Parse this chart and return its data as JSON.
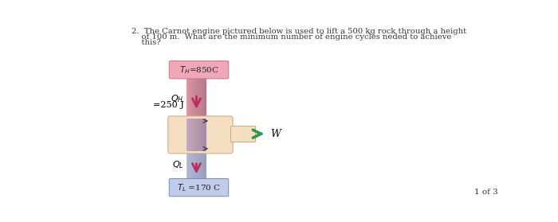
{
  "page_bg": "#ffffff",
  "question_line1": "2.  The Carnot engine pictured below is used to lift a 500 kg rock through a height",
  "question_line2": "    of 100 m.  What are the minimum number of engine cycles neded to achieve",
  "question_line3": "    this?",
  "page_label": "1 of 3",
  "TH_label": "$\\mathit{T}_{H}$=850C",
  "TL_label": "$\\mathit{T}_{L}$ =170 C",
  "QH_line1": "$Q_H$",
  "QH_line2": "=250 J",
  "QL_label": "$Q_L$",
  "W_label": "W",
  "hot_res_color": "#f0a8b8",
  "cold_res_color": "#c0cce8",
  "engine_color": "#f5dfc0",
  "hot_pipe_color": "#d08898",
  "cold_pipe_color": "#a8b0cc",
  "mixed_pipe_color": "#c0a8b8",
  "arrow_color": "#c02860",
  "work_arrow_color": "#289848",
  "small_arrow_color": "#404040",
  "hot_res_edge": "#c07888",
  "cold_res_edge": "#7888b0",
  "engine_edge": "#c8a888"
}
